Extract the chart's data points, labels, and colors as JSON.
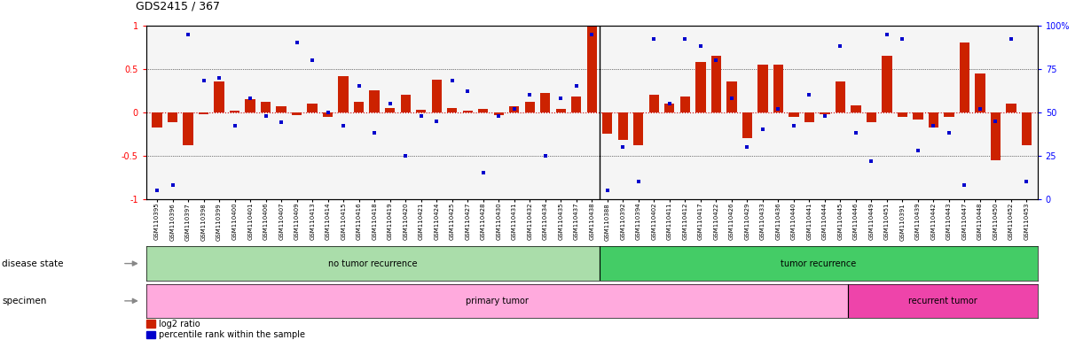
{
  "title": "GDS2415 / 367",
  "samples": [
    "GSM110395",
    "GSM110396",
    "GSM110397",
    "GSM110398",
    "GSM110399",
    "GSM110400",
    "GSM110401",
    "GSM110406",
    "GSM110407",
    "GSM110409",
    "GSM110413",
    "GSM110414",
    "GSM110415",
    "GSM110416",
    "GSM110418",
    "GSM110419",
    "GSM110420",
    "GSM110421",
    "GSM110424",
    "GSM110425",
    "GSM110427",
    "GSM110428",
    "GSM110430",
    "GSM110431",
    "GSM110432",
    "GSM110434",
    "GSM110435",
    "GSM110437",
    "GSM110438",
    "GSM110388",
    "GSM110392",
    "GSM110394",
    "GSM110402",
    "GSM110411",
    "GSM110412",
    "GSM110417",
    "GSM110422",
    "GSM110426",
    "GSM110429",
    "GSM110433",
    "GSM110436",
    "GSM110440",
    "GSM110441",
    "GSM110444",
    "GSM110445",
    "GSM110446",
    "GSM110449",
    "GSM110451",
    "GSM110391",
    "GSM110439",
    "GSM110442",
    "GSM110443",
    "GSM110447",
    "GSM110448",
    "GSM110450",
    "GSM110452",
    "GSM110453"
  ],
  "log2_ratio": [
    -0.18,
    -0.12,
    -0.38,
    -0.02,
    0.35,
    0.02,
    0.15,
    0.12,
    0.07,
    -0.03,
    0.1,
    -0.05,
    0.42,
    0.12,
    0.25,
    0.05,
    0.2,
    0.03,
    0.38,
    0.05,
    0.02,
    0.04,
    -0.03,
    0.07,
    0.12,
    0.22,
    0.04,
    0.18,
    1.0,
    -0.25,
    -0.32,
    -0.38,
    0.2,
    0.1,
    0.18,
    0.58,
    0.65,
    0.35,
    -0.3,
    0.55,
    0.55,
    -0.05,
    -0.12,
    -0.02,
    0.35,
    0.08,
    -0.12,
    0.65,
    -0.05,
    -0.08,
    -0.18,
    -0.05,
    0.8,
    0.45,
    -0.55,
    0.1,
    -0.38
  ],
  "percentile": [
    5,
    8,
    95,
    68,
    70,
    42,
    58,
    48,
    44,
    90,
    80,
    50,
    42,
    65,
    38,
    55,
    25,
    48,
    45,
    68,
    62,
    15,
    48,
    52,
    60,
    25,
    58,
    65,
    95,
    5,
    30,
    10,
    92,
    55,
    92,
    88,
    80,
    58,
    30,
    40,
    52,
    42,
    60,
    48,
    88,
    38,
    22,
    95,
    92,
    28,
    42,
    38,
    8,
    52,
    45,
    92,
    10
  ],
  "no_recurrence_count": 29,
  "recurrence_count": 28,
  "primary_tumor_count": 45,
  "recurrent_tumor_count": 12,
  "bar_color": "#cc2200",
  "dot_color": "#0000cc",
  "zero_line_color": "#cc0000",
  "bg_color_main": "#f5f5f5",
  "disease_state_no": "#aaddaa",
  "disease_state_yes": "#44cc66",
  "specimen_primary": "#ffaadd",
  "specimen_recurrent": "#ee44aa",
  "ylim_left": [
    -1,
    1
  ],
  "ylim_right": [
    0,
    100
  ],
  "yticks_left": [
    -1,
    -0.5,
    0,
    0.5,
    1
  ],
  "yticks_right": [
    0,
    25,
    50,
    75,
    100
  ],
  "yticklabels_left": [
    "-1",
    "-0.5",
    "0",
    "0.5",
    "1"
  ],
  "yticklabels_right": [
    "0",
    "25",
    "50",
    "75",
    "100%"
  ]
}
